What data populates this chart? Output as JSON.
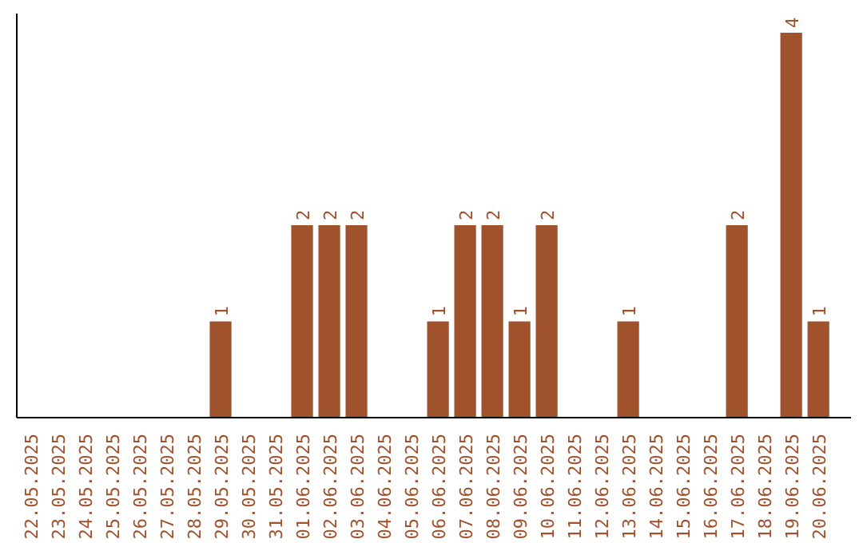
{
  "chart_data": {
    "type": "bar",
    "categories": [
      "22.05.2025",
      "23.05.2025",
      "24.05.2025",
      "25.05.2025",
      "26.05.2025",
      "27.05.2025",
      "28.05.2025",
      "29.05.2025",
      "30.05.2025",
      "31.05.2025",
      "01.06.2025",
      "02.06.2025",
      "03.06.2025",
      "04.06.2025",
      "05.06.2025",
      "06.06.2025",
      "07.06.2025",
      "08.06.2025",
      "09.06.2025",
      "10.06.2025",
      "11.06.2025",
      "12.06.2025",
      "13.06.2025",
      "14.06.2025",
      "15.06.2025",
      "16.06.2025",
      "17.06.2025",
      "18.06.2025",
      "19.06.2025",
      "20.06.2025"
    ],
    "values": [
      0,
      0,
      0,
      0,
      0,
      0,
      0,
      1,
      0,
      0,
      2,
      2,
      2,
      0,
      0,
      1,
      2,
      2,
      1,
      2,
      0,
      0,
      1,
      0,
      0,
      0,
      2,
      0,
      4,
      1
    ],
    "value_labels": [
      null,
      null,
      null,
      null,
      null,
      null,
      null,
      "1",
      null,
      null,
      "2",
      "2",
      "2",
      null,
      null,
      "1",
      "2",
      "2",
      "1",
      "2",
      null,
      null,
      "1",
      null,
      null,
      null,
      "2",
      null,
      "4",
      "1"
    ],
    "color": "#a0522d",
    "grid": false,
    "tick_labels": "x",
    "ylim": [
      0,
      4.2
    ]
  }
}
